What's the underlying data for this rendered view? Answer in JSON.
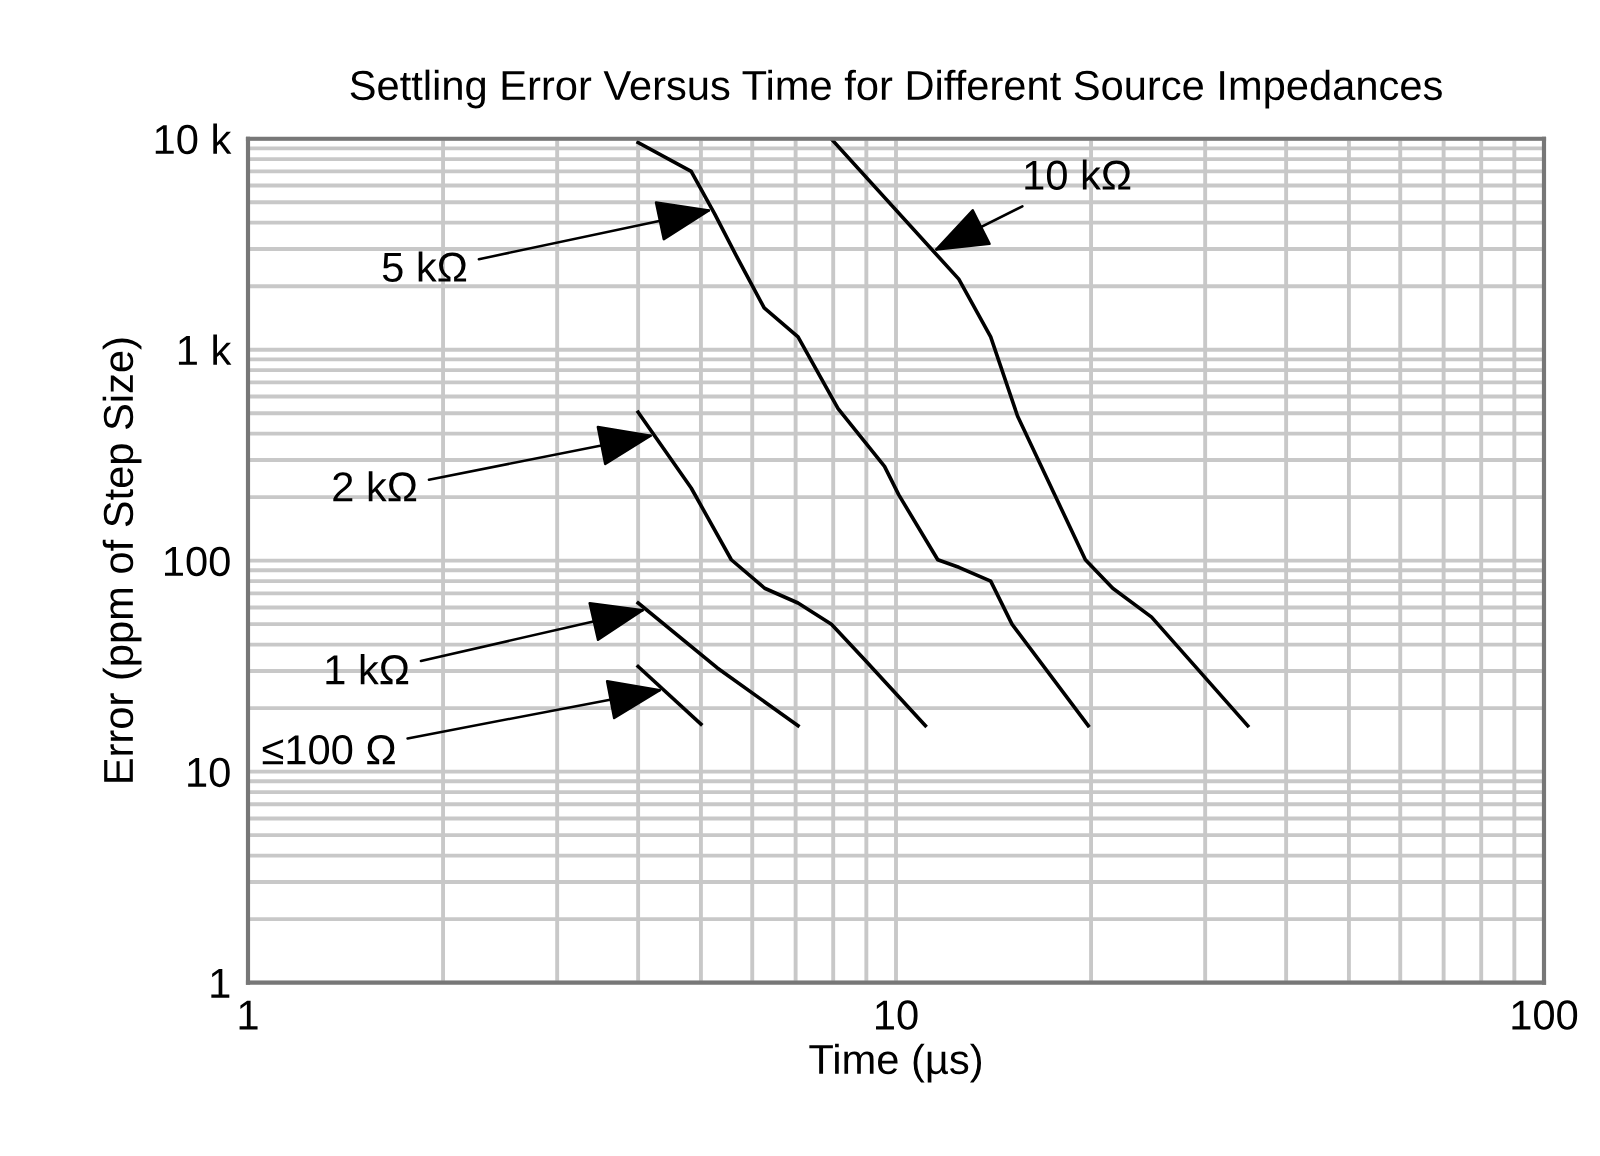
{
  "chart_data": {
    "type": "line",
    "title": "Settling Error Versus Time for Different Source Impedances",
    "xlabel": "Time (µs)",
    "ylabel": "Error (ppm of Step Size)",
    "log": "xy",
    "grid": true,
    "legend": false,
    "marker": "none",
    "line_style": "solid",
    "xlim": [
      1,
      100
    ],
    "ylim": [
      1,
      10000
    ],
    "xticks": [
      1,
      10,
      100
    ],
    "yticks": [
      1,
      10,
      100,
      {
        "value": 1000,
        "label": "1 k"
      },
      {
        "value": 10000,
        "label": "10 k"
      }
    ],
    "series": [
      {
        "name": "10 kΩ",
        "color": "#000000",
        "x": [
          7.94,
          12.5,
          14.0,
          15.4,
          19.6,
          21.6,
          24.8,
          34.9
        ],
        "values": [
          10000,
          2160,
          1150,
          485,
          101,
          74,
          54,
          16.5
        ]
      },
      {
        "name": "5 kΩ",
        "color": "#000000",
        "x": [
          4,
          4.83,
          5.25,
          5.7,
          6.26,
          7.06,
          8.14,
          9.6,
          10.1,
          11.6,
          12.5,
          14.0,
          15.1,
          19.8
        ],
        "values": [
          9600,
          7000,
          4400,
          2700,
          1580,
          1150,
          525,
          280,
          205,
          101,
          93,
          80,
          50,
          16.5
        ]
      },
      {
        "name": "2 kΩ",
        "color": "#000000",
        "x": [
          4,
          4.83,
          5.57,
          6.27,
          7.06,
          7.95,
          8.94,
          11.1
        ],
        "values": [
          505,
          221,
          101,
          74,
          63,
          50,
          34,
          16.5
        ]
      },
      {
        "name": "1 kΩ",
        "color": "#000000",
        "x": [
          4,
          5.3,
          7.06
        ],
        "values": [
          63,
          31,
          16.5
        ]
      },
      {
        "name": "≤100 Ω",
        "color": "#000000",
        "x": [
          4,
          5.0
        ],
        "values": [
          31.5,
          16.8
        ]
      }
    ]
  }
}
